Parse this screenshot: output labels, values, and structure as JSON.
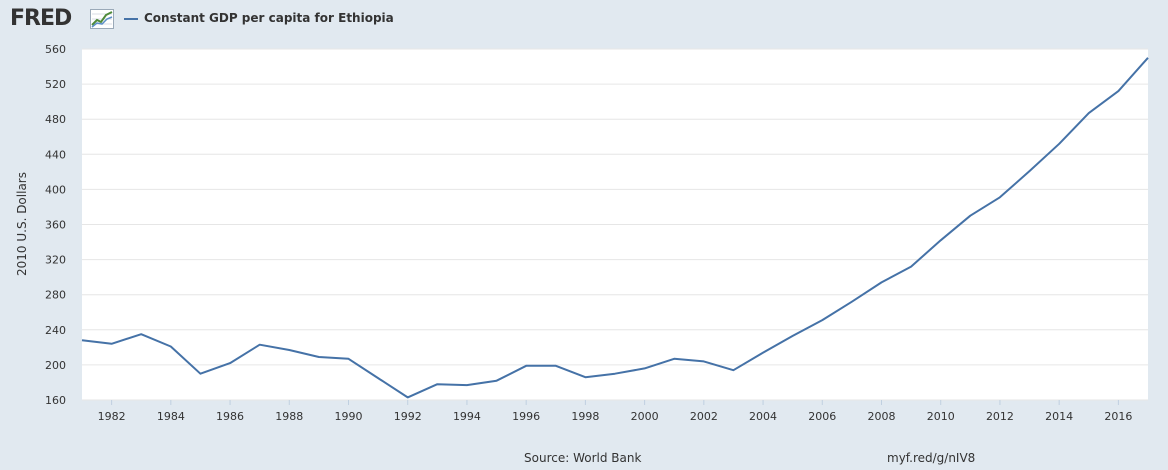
{
  "logo": {
    "text": "FRED",
    "icon": "chart-icon"
  },
  "legend": {
    "label": "Constant GDP per capita for Ethiopia",
    "color": "#4572a7"
  },
  "footer": {
    "source": "Source: World Bank",
    "link": "myf.red/g/nIV8"
  },
  "chart_data": {
    "type": "line",
    "title": "",
    "xlabel": "",
    "ylabel": "2010 U.S. Dollars",
    "xlim": [
      1981,
      2017
    ],
    "ylim": [
      160,
      560
    ],
    "grid": true,
    "legend_position": "top-left",
    "x_ticks": [
      "1982",
      "1984",
      "1986",
      "1988",
      "1990",
      "1992",
      "1994",
      "1996",
      "1998",
      "2000",
      "2002",
      "2004",
      "2006",
      "2008",
      "2010",
      "2012",
      "2014",
      "2016"
    ],
    "y_ticks": [
      "160",
      "200",
      "240",
      "280",
      "320",
      "360",
      "400",
      "440",
      "480",
      "520",
      "560"
    ],
    "series": [
      {
        "name": "Constant GDP per capita for Ethiopia",
        "color": "#4572a7",
        "x": [
          1981,
          1982,
          1983,
          1984,
          1985,
          1986,
          1987,
          1988,
          1989,
          1990,
          1991,
          1992,
          1993,
          1994,
          1995,
          1996,
          1997,
          1998,
          1999,
          2000,
          2001,
          2002,
          2003,
          2004,
          2005,
          2006,
          2007,
          2008,
          2009,
          2010,
          2011,
          2012,
          2013,
          2014,
          2015,
          2016,
          2017
        ],
        "y": [
          228,
          224,
          235,
          221,
          190,
          202,
          223,
          217,
          209,
          207,
          185,
          163,
          178,
          177,
          182,
          199,
          199,
          186,
          190,
          196,
          207,
          204,
          194,
          214,
          233,
          251,
          272,
          294,
          312,
          342,
          370,
          391,
          421,
          452,
          487,
          512,
          550
        ]
      }
    ]
  }
}
